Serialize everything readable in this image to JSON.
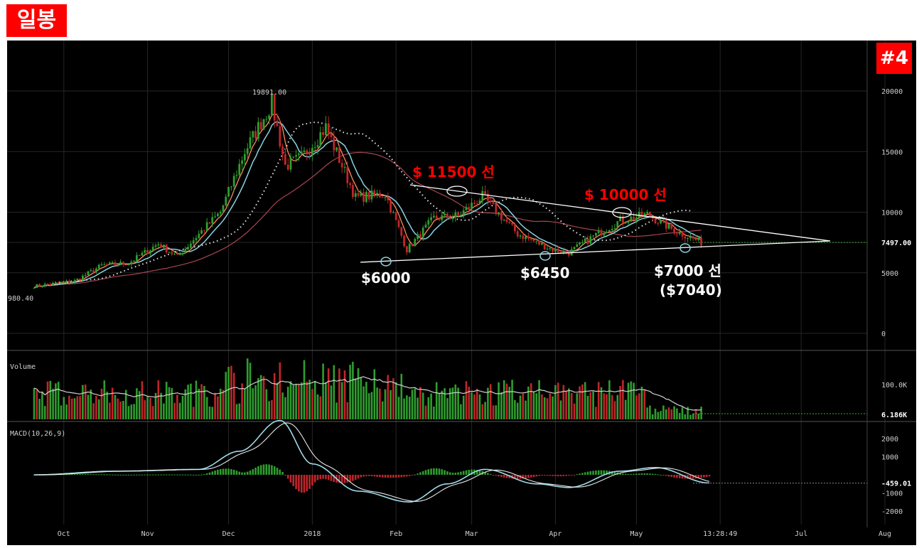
{
  "header": {
    "period_badge": "일봉",
    "chart_number": "#4"
  },
  "chart_data": {
    "type": "candlestick",
    "x_ticks": [
      "Oct",
      "Nov",
      "Dec",
      "2018",
      "Feb",
      "Mar",
      "Apr",
      "May",
      "13:28:49",
      "Jul",
      "Aug"
    ],
    "price": {
      "y_ticks": [
        "20000",
        "15000",
        "10000",
        "7497.00",
        "5000",
        "0"
      ],
      "y_tick_values": [
        20000,
        15000,
        10000,
        7497,
        5000,
        0
      ],
      "ylim": [
        -1200,
        20000
      ],
      "last_price": 7497,
      "last_price_label": "7497.00",
      "high_label": "19891.00",
      "low_label": "980.40",
      "grid": true,
      "ohlc_close_path": [
        {
          "x": "2017-09-20",
          "close": 3900
        },
        {
          "x": "2017-10-05",
          "close": 4300
        },
        {
          "x": "2017-10-15",
          "close": 5600
        },
        {
          "x": "2017-10-25",
          "close": 5800
        },
        {
          "x": "2017-11-05",
          "close": 7400
        },
        {
          "x": "2017-11-12",
          "close": 6300
        },
        {
          "x": "2017-11-20",
          "close": 8200
        },
        {
          "x": "2017-11-28",
          "close": 10000
        },
        {
          "x": "2017-12-07",
          "close": 15000
        },
        {
          "x": "2017-12-17",
          "close": 19000
        },
        {
          "x": "2017-12-22",
          "close": 13800
        },
        {
          "x": "2017-12-28",
          "close": 14500
        },
        {
          "x": "2018-01-06",
          "close": 17000
        },
        {
          "x": "2018-01-17",
          "close": 11200
        },
        {
          "x": "2018-01-28",
          "close": 11500
        },
        {
          "x": "2018-02-05",
          "close": 6900
        },
        {
          "x": "2018-02-15",
          "close": 9500
        },
        {
          "x": "2018-02-24",
          "close": 9700
        },
        {
          "x": "2018-03-05",
          "close": 11300
        },
        {
          "x": "2018-03-18",
          "close": 8200
        },
        {
          "x": "2018-03-31",
          "close": 6900
        },
        {
          "x": "2018-04-06",
          "close": 6650
        },
        {
          "x": "2018-04-15",
          "close": 8000
        },
        {
          "x": "2018-04-25",
          "close": 9300
        },
        {
          "x": "2018-05-05",
          "close": 9800
        },
        {
          "x": "2018-05-15",
          "close": 8500
        },
        {
          "x": "2018-05-25",
          "close": 7500
        }
      ]
    },
    "volume": {
      "label": "Volume",
      "y_ticks": [
        "100.0K"
      ],
      "last_label": "6.186K"
    },
    "macd": {
      "label": "MACD(10,26,9)",
      "y_ticks": [
        "2000",
        "1000",
        "-1000",
        "-2000"
      ],
      "y_tick_values": [
        2000,
        1000,
        -1000,
        -2000
      ],
      "ylim": [
        -2600,
        3000
      ],
      "last_label": "-459.01",
      "macd_line": [
        {
          "x": "2017-09-20",
          "v": 0
        },
        {
          "x": "2017-10-20",
          "v": 200
        },
        {
          "x": "2017-11-20",
          "v": 300
        },
        {
          "x": "2017-12-05",
          "v": 1300
        },
        {
          "x": "2017-12-20",
          "v": 3000
        },
        {
          "x": "2018-01-01",
          "v": 600
        },
        {
          "x": "2018-01-18",
          "v": -900
        },
        {
          "x": "2018-02-06",
          "v": -1500
        },
        {
          "x": "2018-02-20",
          "v": -500
        },
        {
          "x": "2018-03-06",
          "v": 300
        },
        {
          "x": "2018-03-25",
          "v": -500
        },
        {
          "x": "2018-04-06",
          "v": -700
        },
        {
          "x": "2018-04-25",
          "v": 200
        },
        {
          "x": "2018-05-08",
          "v": 400
        },
        {
          "x": "2018-05-28",
          "v": -450
        }
      ]
    },
    "annotations": {
      "resistance_1": "$ 11500 선",
      "resistance_2": "$ 10000 선",
      "support_1": "$6000",
      "support_2": "$6450",
      "support_3_line1": "$7000 선",
      "support_3_line2": "($7040)"
    },
    "colors": {
      "background": "#000000",
      "bull": "#2e9e2e",
      "bear": "#c0262a",
      "ma_fast": "#ff8b5e",
      "ma_mid": "#8ad3e3",
      "ma_slow": "#a8464f",
      "annotation_red": "#ff0000",
      "annotation_white": "#ffffff"
    }
  }
}
